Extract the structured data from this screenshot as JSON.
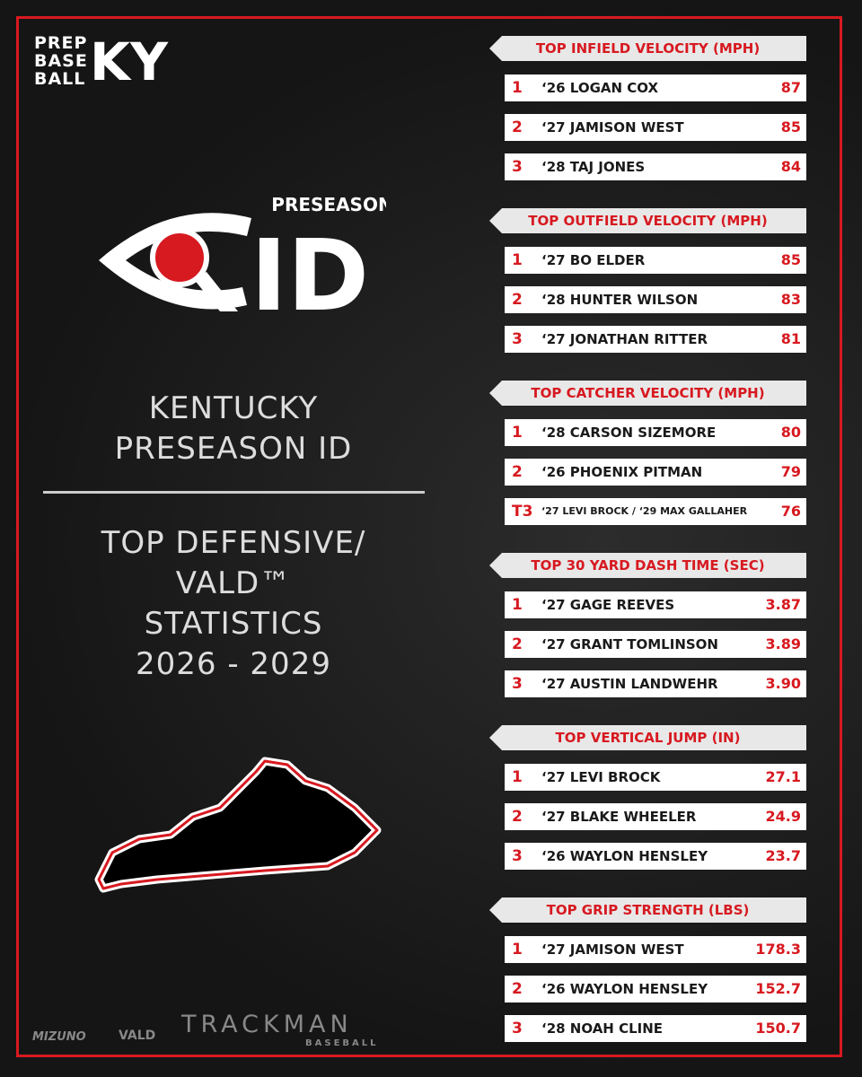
{
  "brand": {
    "lines": [
      "PREP",
      "BASE",
      "BALL"
    ],
    "state": "KY"
  },
  "event_logo": {
    "top": "PRESEASON",
    "main": "ID"
  },
  "event_title": [
    "KENTUCKY",
    "PRESEASON ID"
  ],
  "stats_title": [
    "TOP DEFENSIVE/",
    "VALD™",
    "STATISTICS",
    "2026 - 2029"
  ],
  "sponsors": {
    "mizuno": "MIZUNO",
    "vald": "VALD",
    "trackman": "TRACKMAN",
    "trackman_sub": "BASEBALL"
  },
  "sections": [
    {
      "title": "TOP INFIELD VELOCITY (MPH)",
      "rows": [
        [
          "1",
          "‘26 LOGAN COX",
          "87"
        ],
        [
          "2",
          "‘27 JAMISON WEST",
          "85"
        ],
        [
          "3",
          "‘28 TAJ JONES",
          "84"
        ]
      ]
    },
    {
      "title": "TOP OUTFIELD VELOCITY (MPH)",
      "rows": [
        [
          "1",
          "‘27 BO ELDER",
          "85"
        ],
        [
          "2",
          "‘28 HUNTER WILSON",
          "83"
        ],
        [
          "3",
          "‘27 JONATHAN RITTER",
          "81"
        ]
      ]
    },
    {
      "title": "TOP CATCHER VELOCITY (MPH)",
      "rows": [
        [
          "1",
          "‘28 CARSON SIZEMORE",
          "80"
        ],
        [
          "2",
          "‘26 PHOENIX PITMAN",
          "79"
        ],
        [
          "T3",
          "‘27 LEVI BROCK / ‘29 MAX GALLAHER",
          "76"
        ]
      ]
    },
    {
      "title": "TOP 30 YARD DASH TIME (SEC)",
      "rows": [
        [
          "1",
          "‘27 GAGE REEVES",
          "3.87"
        ],
        [
          "2",
          "‘27 GRANT TOMLINSON",
          "3.89"
        ],
        [
          "3",
          "‘27 AUSTIN LANDWEHR",
          "3.90"
        ]
      ]
    },
    {
      "title": "TOP VERTICAL JUMP (IN)",
      "rows": [
        [
          "1",
          "‘27 LEVI BROCK",
          "27.1"
        ],
        [
          "2",
          "‘27 BLAKE WHEELER",
          "24.9"
        ],
        [
          "3",
          "‘26 WAYLON HENSLEY",
          "23.7"
        ]
      ]
    },
    {
      "title": "TOP GRIP STRENGTH (LBS)",
      "rows": [
        [
          "1",
          "‘27 JAMISON WEST",
          "178.3"
        ],
        [
          "2",
          "‘26 WAYLON HENSLEY",
          "152.7"
        ],
        [
          "3",
          "‘28 NOAH CLINE",
          "150.7"
        ]
      ]
    }
  ]
}
